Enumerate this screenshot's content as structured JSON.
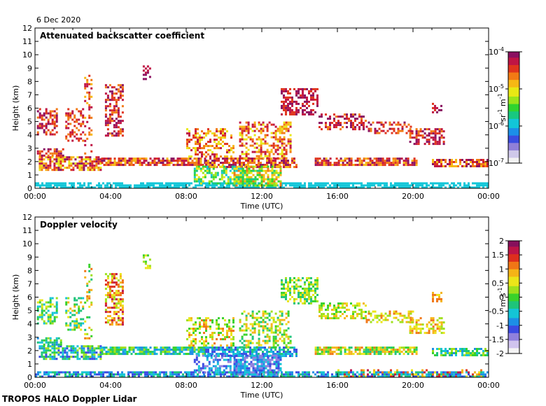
{
  "header": {
    "date": "6 Dec 2020"
  },
  "footer": {
    "label": "TROPOS HALO Doppler Lidar"
  },
  "chart_data": [
    {
      "type": "heatmap",
      "title": "Attenuated backscatter coefficient",
      "xlabel": "Time (UTC)",
      "ylabel": "Height (km)",
      "xlim": [
        0,
        24
      ],
      "ylim": [
        0,
        12
      ],
      "xticks": [
        "00:00",
        "04:00",
        "08:00",
        "12:00",
        "16:00",
        "20:00",
        "00:00"
      ],
      "yticks": [
        "0",
        "1",
        "2",
        "3",
        "4",
        "5",
        "6",
        "7",
        "8",
        "9",
        "10",
        "11",
        "12"
      ],
      "colorbar": {
        "scale": "log",
        "labels": [
          {
            "base": "10",
            "exp": "-4"
          },
          {
            "base": "10",
            "exp": "-5"
          },
          {
            "base": "10",
            "exp": "-6"
          },
          {
            "base": "10",
            "exp": "-7"
          }
        ],
        "unit": {
          "a": "sr",
          "a_exp": "-1",
          "b": " m",
          "b_exp": "-1"
        }
      }
    },
    {
      "type": "heatmap",
      "title": "Doppler velocity",
      "xlabel": "Time (UTC)",
      "ylabel": "Height (km)",
      "xlim": [
        0,
        24
      ],
      "ylim": [
        0,
        12
      ],
      "xticks": [
        "00:00",
        "04:00",
        "08:00",
        "12:00",
        "16:00",
        "20:00",
        "00:00"
      ],
      "yticks": [
        "0",
        "1",
        "2",
        "3",
        "4",
        "5",
        "6",
        "7",
        "8",
        "9",
        "10",
        "11",
        "12"
      ],
      "colorbar": {
        "scale": "linear",
        "labels": [
          "2",
          "1.5",
          "1",
          "0.5",
          "0",
          "-0.5",
          "-1",
          "-1.5",
          "-2"
        ],
        "unit": {
          "a": "m",
          "a_exp": "",
          "b": " s",
          "b_exp": "-1"
        }
      }
    }
  ]
}
